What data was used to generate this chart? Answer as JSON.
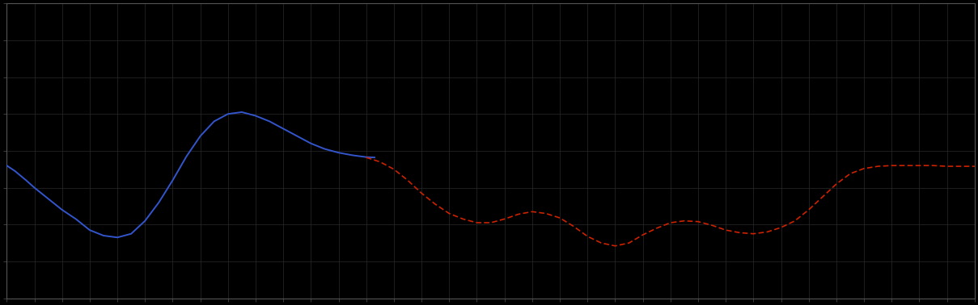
{
  "background_color": "#000000",
  "plot_bg_color": "#000000",
  "grid_color": "#2a2a2a",
  "axis_color": "#555555",
  "tick_color": "#555555",
  "blue_line_color": "#3355cc",
  "red_line_color": "#cc2200",
  "figsize": [
    12.09,
    3.78
  ],
  "dpi": 100,
  "xlim": [
    0,
    35
  ],
  "ylim": [
    0,
    8
  ],
  "blue_x": [
    0,
    0.3,
    0.7,
    1.0,
    1.5,
    2.0,
    2.5,
    3.0,
    3.5,
    4.0,
    4.5,
    5.0,
    5.5,
    6.0,
    6.5,
    7.0,
    7.5,
    8.0,
    8.5,
    9.0,
    9.5,
    10.0,
    10.5,
    11.0,
    11.5,
    12.0,
    12.5,
    13.0,
    13.3
  ],
  "blue_y": [
    3.6,
    3.45,
    3.2,
    3.0,
    2.7,
    2.4,
    2.15,
    1.85,
    1.7,
    1.65,
    1.75,
    2.1,
    2.6,
    3.2,
    3.85,
    4.4,
    4.8,
    5.0,
    5.05,
    4.95,
    4.8,
    4.6,
    4.4,
    4.2,
    4.05,
    3.95,
    3.88,
    3.83,
    3.82
  ],
  "red_x": [
    13.0,
    13.5,
    14.0,
    14.5,
    15.0,
    15.5,
    16.0,
    16.5,
    17.0,
    17.5,
    18.0,
    18.5,
    19.0,
    19.5,
    20.0,
    20.5,
    21.0,
    21.5,
    22.0,
    22.5,
    23.0,
    23.5,
    24.0,
    24.5,
    25.0,
    25.5,
    26.0,
    26.5,
    27.0,
    27.5,
    28.0,
    28.5,
    29.0,
    29.5,
    30.0,
    30.5,
    31.0,
    31.5,
    32.0,
    32.5,
    33.0,
    33.5,
    34.0,
    34.5,
    35.0
  ],
  "red_y": [
    3.82,
    3.7,
    3.5,
    3.2,
    2.85,
    2.55,
    2.3,
    2.15,
    2.05,
    2.05,
    2.15,
    2.28,
    2.35,
    2.3,
    2.18,
    1.95,
    1.68,
    1.5,
    1.42,
    1.5,
    1.72,
    1.9,
    2.05,
    2.1,
    2.08,
    1.98,
    1.85,
    1.78,
    1.75,
    1.8,
    1.92,
    2.1,
    2.4,
    2.75,
    3.1,
    3.38,
    3.52,
    3.58,
    3.6,
    3.6,
    3.6,
    3.6,
    3.58,
    3.58,
    3.58
  ],
  "n_xgrid": 36,
  "n_ygrid": 9
}
